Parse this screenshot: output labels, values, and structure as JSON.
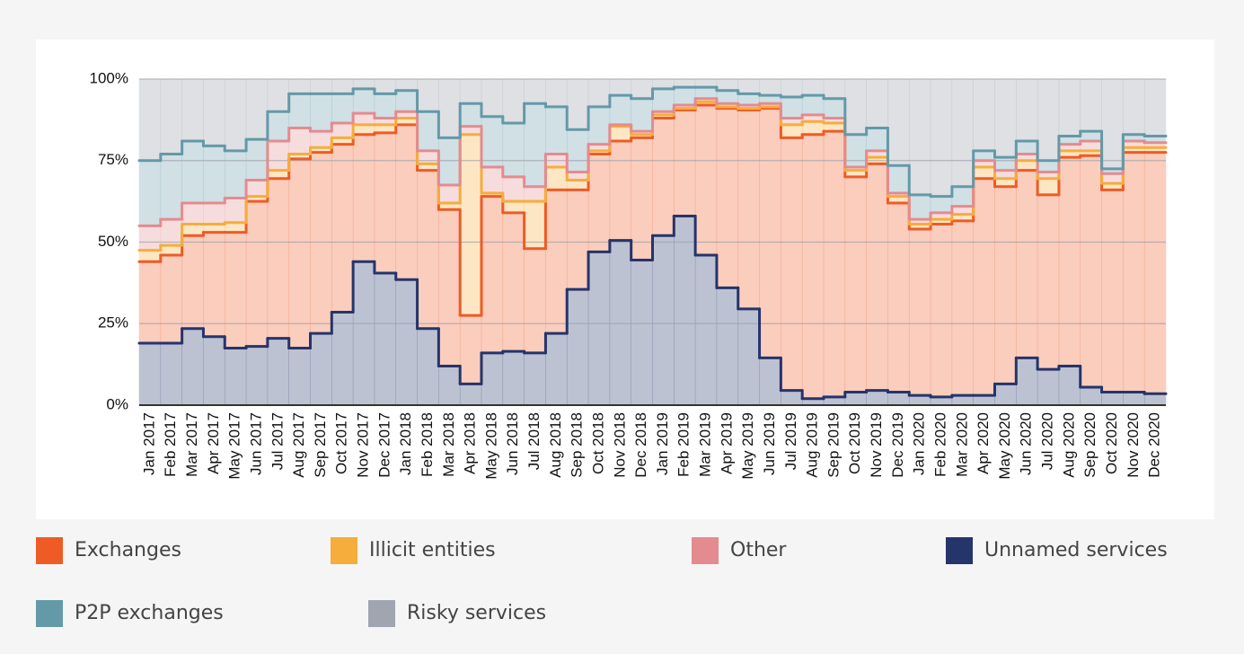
{
  "chart_data": {
    "type": "stacked-step-area",
    "categories": [
      "Jan 2017",
      "Feb 2017",
      "Mar 2017",
      "Apr 2017",
      "May 2017",
      "Jun 2017",
      "Jul 2017",
      "Aug 2017",
      "Sep 2017",
      "Oct 2017",
      "Nov 2017",
      "Dec 2017",
      "Jan 2018",
      "Feb 2018",
      "Mar 2018",
      "Apr 2018",
      "May 2018",
      "Jun 2018",
      "Jul 2018",
      "Aug 2018",
      "Sep 2018",
      "Oct 2018",
      "Nov 2018",
      "Dec 2018",
      "Jan 2019",
      "Feb 2019",
      "Mar 2019",
      "Apr 2019",
      "May 2019",
      "Jun 2019",
      "Jul 2019",
      "Aug 2019",
      "Sep 2019",
      "Oct 2019",
      "Nov 2019",
      "Dec 2019",
      "Jan 2020",
      "Feb 2020",
      "Mar 2020",
      "Apr 2020",
      "May 2020",
      "Jun 2020",
      "Jul 2020",
      "Aug 2020",
      "Sep 2020",
      "Oct 2020",
      "Nov 2020",
      "Dec 2020"
    ],
    "series": [
      {
        "name": "Unnamed services",
        "color": "#25346b",
        "values": [
          19,
          19,
          23.5,
          21,
          17.5,
          18,
          20.5,
          17.5,
          22,
          28.5,
          44,
          40.5,
          38.5,
          23.5,
          12,
          6.5,
          16,
          16.5,
          16,
          22,
          35.5,
          47,
          50.5,
          44.5,
          52,
          58,
          46,
          36,
          29.5,
          14.5,
          4.5,
          2,
          2.5,
          4,
          4.5,
          4,
          3,
          2.5,
          3,
          3,
          6.5,
          14.5,
          11,
          12,
          5.5,
          4,
          4,
          3.5
        ]
      },
      {
        "name": "Exchanges",
        "color": "#ef5b25",
        "values": [
          25,
          27,
          28.5,
          32,
          35.5,
          44.5,
          49,
          58,
          55.5,
          51.5,
          39,
          43,
          47.5,
          48.5,
          48,
          21,
          48,
          42.5,
          32,
          44,
          30.5,
          30,
          30.5,
          37.5,
          36,
          32.5,
          46,
          55,
          61,
          76.5,
          77.5,
          81,
          81.5,
          66,
          69.5,
          58,
          51,
          53,
          53.5,
          66.5,
          60.5,
          57.5,
          53.5,
          64,
          71,
          62,
          73.5,
          74
        ]
      },
      {
        "name": "Illicit entities",
        "color": "#f5ad3c",
        "values": [
          3.5,
          3,
          3.5,
          2.5,
          3,
          1.5,
          2.5,
          1.5,
          1.5,
          2,
          3,
          2.5,
          2,
          2,
          2,
          55.5,
          1,
          3.5,
          14.5,
          7,
          3,
          1,
          4.5,
          1,
          1,
          0.5,
          1,
          0.5,
          0.5,
          0.5,
          4,
          4,
          2.5,
          2,
          2,
          2,
          1.5,
          1.5,
          2,
          3.5,
          2.5,
          3,
          5,
          2,
          1.5,
          2,
          1.5,
          1.5
        ]
      },
      {
        "name": "Other",
        "color": "#e48b8f",
        "values": [
          7.5,
          8,
          6.5,
          6.5,
          7.5,
          5,
          9,
          8,
          5,
          4.5,
          3.5,
          2,
          2,
          4,
          5.5,
          2.5,
          8,
          7.5,
          4.5,
          4,
          2.5,
          2,
          0.5,
          1,
          1,
          1,
          1,
          1,
          1,
          1,
          2,
          2,
          1.5,
          1,
          2,
          1,
          1.5,
          2,
          2.5,
          2,
          2.5,
          2,
          2,
          2,
          3,
          3,
          2,
          1.5
        ]
      },
      {
        "name": "P2P exchanges",
        "color": "#6499a8",
        "values": [
          20,
          20,
          19,
          17.5,
          14.5,
          12.5,
          9,
          10.5,
          11.5,
          9,
          7.5,
          7.5,
          6.5,
          12,
          14.5,
          7,
          15.5,
          16.5,
          25.5,
          14.5,
          13,
          11.5,
          9,
          10,
          7,
          5.5,
          3.5,
          4,
          3.5,
          2.5,
          6.5,
          6,
          6,
          10,
          7,
          8.5,
          7.5,
          5,
          6,
          3,
          4,
          4,
          3.5,
          2.5,
          3,
          1.5,
          2,
          2
        ]
      },
      {
        "name": "Risky services",
        "color": "#a0a5b0",
        "values": [
          25,
          23,
          19,
          20.5,
          22,
          18.5,
          10,
          4.5,
          4.5,
          4.5,
          3,
          4.5,
          3.5,
          10,
          18,
          7.5,
          11.5,
          13.5,
          7.5,
          8.5,
          15.5,
          8.5,
          5,
          6,
          3,
          2.5,
          2.5,
          3.5,
          4.5,
          5,
          5.5,
          5,
          6,
          17,
          15,
          26.5,
          35.5,
          36,
          33,
          22,
          24,
          19,
          25,
          17.5,
          16,
          27.5,
          17,
          17.5
        ]
      }
    ],
    "legend_order": [
      1,
      2,
      3,
      0,
      4,
      5
    ],
    "ylim": [
      0,
      100
    ],
    "yticks": [
      {
        "value": 0,
        "label": "0%"
      },
      {
        "value": 25,
        "label": "25%"
      },
      {
        "value": 50,
        "label": "50%"
      },
      {
        "value": 75,
        "label": "75%"
      },
      {
        "value": 100,
        "label": "100%"
      }
    ],
    "grid": true
  }
}
